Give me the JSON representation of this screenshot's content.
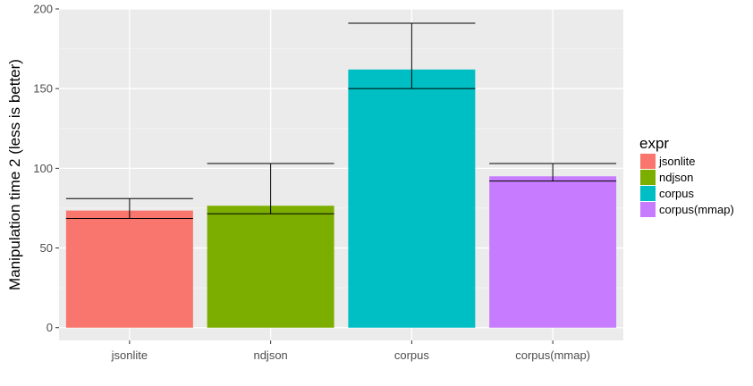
{
  "chart_data": {
    "type": "bar",
    "title": "",
    "xlabel": "",
    "ylabel": "Manipulation time 2 (less is better)",
    "ylim": [
      -8,
      200
    ],
    "y_ticks": [
      0,
      50,
      100,
      150,
      200
    ],
    "categories": [
      "jsonlite",
      "ndjson",
      "corpus",
      "corpus(mmap)"
    ],
    "values": [
      73.5,
      76.5,
      162,
      95
    ],
    "error_low": [
      68.5,
      71.5,
      150,
      92
    ],
    "error_high": [
      81,
      103,
      191,
      103
    ],
    "colors": [
      "#F8766D",
      "#7CAE00",
      "#00BFC4",
      "#C77CFF"
    ],
    "grid": true,
    "legend": {
      "title": "expr",
      "position": "right",
      "entries": [
        "jsonlite",
        "ndjson",
        "corpus",
        "corpus(mmap)"
      ]
    },
    "panel_background": "#EBEBEB"
  }
}
